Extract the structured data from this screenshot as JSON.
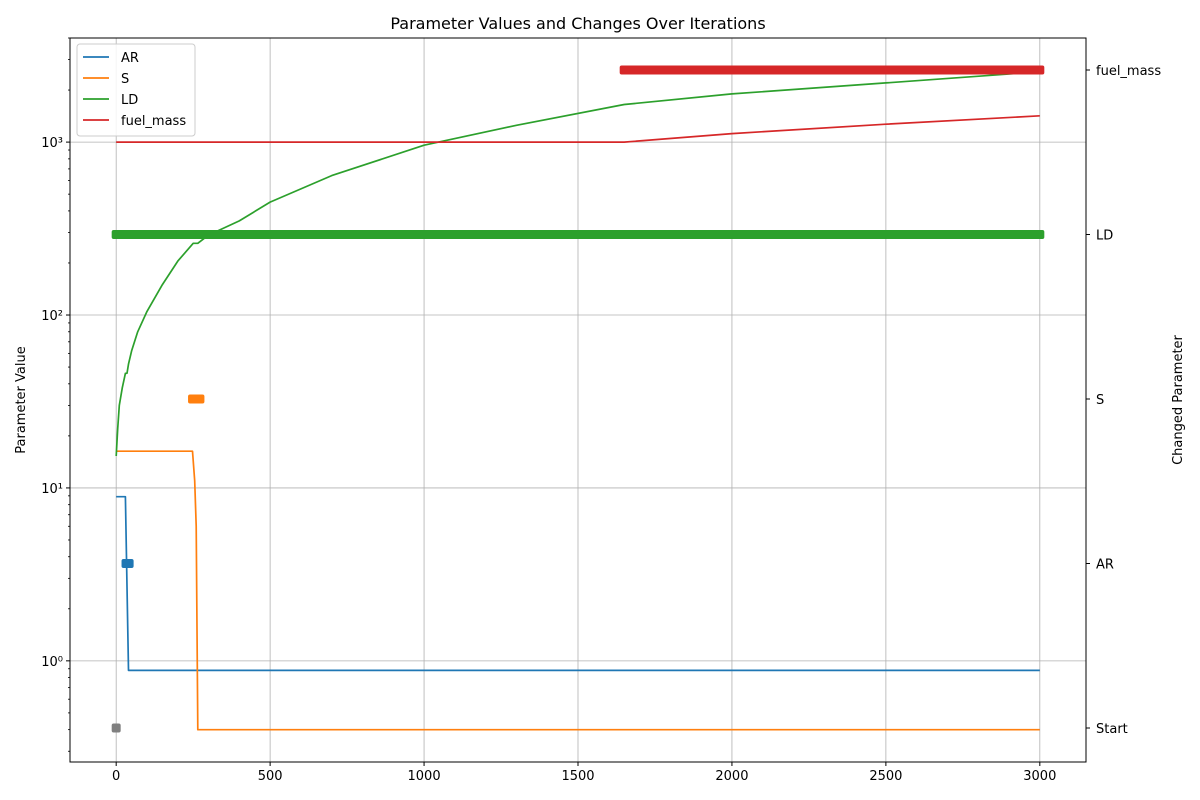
{
  "chart_data": {
    "type": "line",
    "title": "Parameter Values and Changes Over Iterations",
    "xlabel": "",
    "ylabel": "Parameter Value",
    "ylabel_right": "Changed Parameter",
    "y_scale": "log",
    "xlim": [
      -150,
      3150
    ],
    "ylim": [
      0.26,
      4000
    ],
    "x_ticks": [
      0,
      500,
      1000,
      1500,
      2000,
      2500,
      3000
    ],
    "x_tick_labels": [
      "0",
      "500",
      "1000",
      "1500",
      "2000",
      "2500",
      "3000"
    ],
    "y_ticks": [
      1,
      10,
      100,
      1000
    ],
    "y_tick_labels": [
      "10⁰",
      "10¹",
      "10²",
      "10³"
    ],
    "right_categories": [
      "Start",
      "AR",
      "S",
      "LD",
      "fuel_mass"
    ],
    "grid": true,
    "legend_position": "upper-left",
    "series": [
      {
        "name": "AR",
        "color": "#1f77b4",
        "points": [
          [
            0,
            8.9
          ],
          [
            30,
            8.9
          ],
          [
            40,
            0.88
          ],
          [
            3000,
            0.88
          ]
        ]
      },
      {
        "name": "S",
        "color": "#ff7f0e",
        "points": [
          [
            0,
            16.3
          ],
          [
            248,
            16.3
          ],
          [
            255,
            11
          ],
          [
            260,
            6
          ],
          [
            265,
            0.4
          ],
          [
            3000,
            0.4
          ]
        ]
      },
      {
        "name": "LD",
        "color": "#2ca02c",
        "points": [
          [
            0,
            15.3
          ],
          [
            5,
            22
          ],
          [
            10,
            30
          ],
          [
            20,
            38
          ],
          [
            30,
            46
          ],
          [
            35,
            46
          ],
          [
            40,
            52
          ],
          [
            50,
            62
          ],
          [
            70,
            80
          ],
          [
            100,
            105
          ],
          [
            150,
            150
          ],
          [
            200,
            205
          ],
          [
            250,
            260
          ],
          [
            265,
            260
          ],
          [
            300,
            290
          ],
          [
            400,
            350
          ],
          [
            500,
            450
          ],
          [
            700,
            640
          ],
          [
            1000,
            960
          ],
          [
            1300,
            1250
          ],
          [
            1650,
            1650
          ],
          [
            2000,
            1900
          ],
          [
            2500,
            2200
          ],
          [
            3000,
            2550
          ]
        ]
      },
      {
        "name": "fuel_mass",
        "color": "#d62728",
        "points": [
          [
            0,
            1000
          ],
          [
            1650,
            1000
          ],
          [
            2000,
            1120
          ],
          [
            2500,
            1270
          ],
          [
            3000,
            1420
          ]
        ]
      }
    ],
    "change_markers": [
      {
        "category": "Start",
        "color": "#7f7f7f",
        "x_start": 0,
        "x_end": 0
      },
      {
        "category": "AR",
        "color": "#1f77b4",
        "x_start": 32,
        "x_end": 42
      },
      {
        "category": "S",
        "color": "#ff7f0e",
        "x_start": 248,
        "x_end": 272
      },
      {
        "category": "LD",
        "color": "#2ca02c",
        "x_start": 0,
        "x_end": 3000
      },
      {
        "category": "fuel_mass",
        "color": "#d62728",
        "x_start": 1650,
        "x_end": 3000
      }
    ]
  }
}
